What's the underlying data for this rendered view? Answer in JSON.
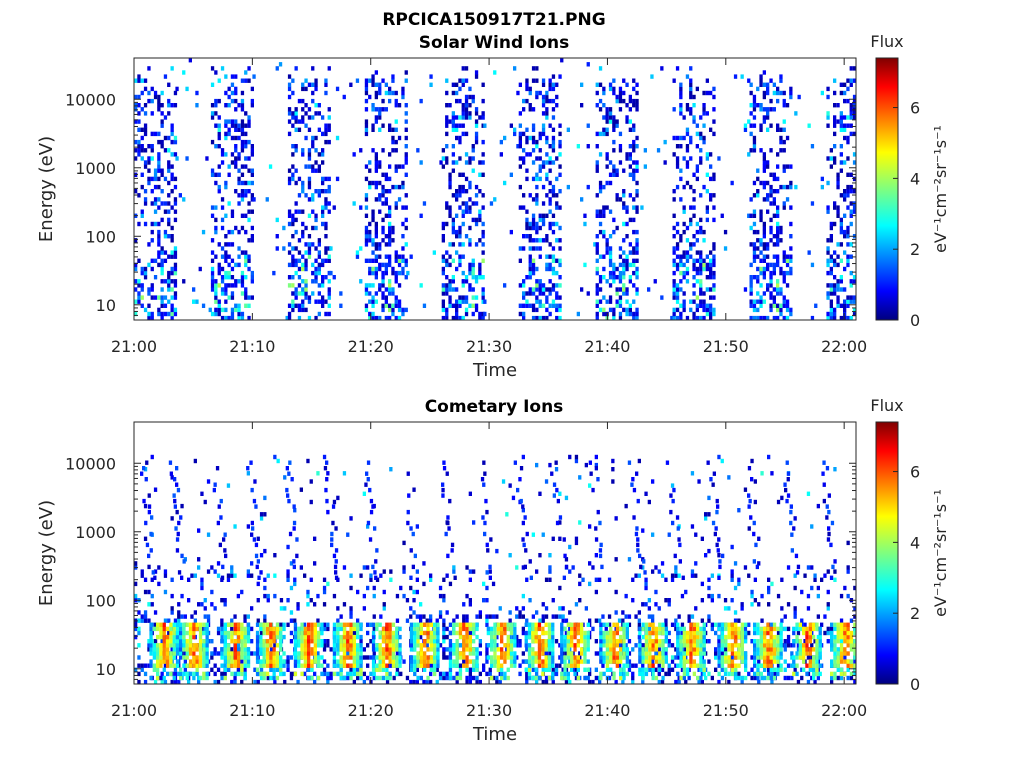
{
  "figure": {
    "title_line1": "RPCICA150917T21.PNG",
    "title_line2": "Solar Wind Ions"
  },
  "chart_data": [
    {
      "type": "heatmap",
      "title": "Solar Wind Ions",
      "xlabel": "Time",
      "ylabel": "Energy (eV)",
      "x_ticks": [
        "21:00",
        "21:10",
        "21:20",
        "21:30",
        "21:40",
        "21:50",
        "22:00"
      ],
      "x_range": [
        "21:00",
        "22:01"
      ],
      "y_ticks": [
        "10",
        "100",
        "1000",
        "10000"
      ],
      "y_scale": "log",
      "y_range": [
        6,
        40000
      ],
      "colorbar": {
        "label": "Flux",
        "units": "eV⁻¹cm⁻²sr⁻¹s⁻¹",
        "ticks": [
          "0",
          "2",
          "4",
          "6"
        ],
        "range": [
          0,
          7.4
        ],
        "colormap": "jet"
      },
      "scan_start_minutes": [
        0,
        6.5,
        13,
        19.5,
        26,
        32.5,
        39,
        45.5,
        52,
        58.5
      ],
      "scan_duration_minutes": 3.5,
      "low_energy_band_eV": [
        6,
        50
      ],
      "high_energy_spread_eV": [
        60,
        30000
      ],
      "typical_flux_low_band": 2.5,
      "typical_flux_high": 1.0
    },
    {
      "type": "heatmap",
      "title": "Cometary Ions",
      "xlabel": "Time",
      "ylabel": "Energy (eV)",
      "x_ticks": [
        "21:00",
        "21:10",
        "21:20",
        "21:30",
        "21:40",
        "21:50",
        "22:00"
      ],
      "x_range": [
        "21:00",
        "22:01"
      ],
      "y_ticks": [
        "10",
        "100",
        "1000",
        "10000"
      ],
      "y_scale": "log",
      "y_range": [
        6,
        40000
      ],
      "colorbar": {
        "label": "Flux",
        "units": "eV⁻¹cm⁻²sr⁻¹s⁻¹",
        "ticks": [
          "0",
          "2",
          "4",
          "6"
        ],
        "range": [
          0,
          7.4
        ],
        "colormap": "jet"
      },
      "hot_spot_minutes": [
        2.5,
        5.0,
        8.5,
        11.5,
        14.7,
        18.0,
        21.3,
        24.5,
        27.8,
        31.0,
        34.2,
        37.2,
        40.5,
        43.8,
        47.0,
        50.5,
        53.5,
        56.8,
        60.0
      ],
      "hot_spot_energy_eV": [
        10,
        45
      ],
      "hot_spot_peak_flux": 6.8,
      "sparse_spread_eV": [
        60,
        10000
      ]
    }
  ]
}
